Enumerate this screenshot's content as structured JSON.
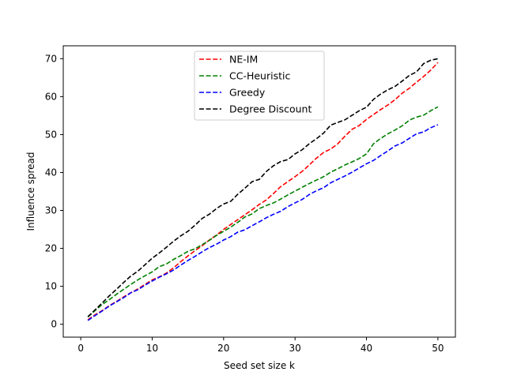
{
  "chart_data": {
    "type": "line",
    "title": "",
    "xlabel": "Seed set size k",
    "ylabel": "Influence spread",
    "xlim": [
      -2.45,
      52.45
    ],
    "ylim": [
      -3.4,
      73.4
    ],
    "xticks": [
      0,
      10,
      20,
      30,
      40,
      50
    ],
    "yticks": [
      0,
      10,
      20,
      30,
      40,
      50,
      60,
      70
    ],
    "grid": false,
    "legend_position": "upper center",
    "x": [
      1,
      2,
      3,
      4,
      5,
      6,
      7,
      8,
      9,
      10,
      11,
      12,
      13,
      14,
      15,
      16,
      17,
      18,
      19,
      20,
      21,
      22,
      23,
      24,
      25,
      26,
      27,
      28,
      29,
      30,
      31,
      32,
      33,
      34,
      35,
      36,
      37,
      38,
      39,
      40,
      41,
      42,
      43,
      44,
      45,
      46,
      47,
      48,
      49,
      50
    ],
    "series": [
      {
        "name": "NE-IM",
        "color": "#ff0000",
        "values": [
          1.2,
          2.5,
          3.6,
          4.9,
          6.0,
          7.2,
          8.3,
          9.3,
          10.5,
          11.7,
          12.5,
          13.5,
          14.9,
          16.5,
          18.0,
          19.4,
          20.7,
          22.2,
          23.5,
          25.0,
          26.3,
          27.6,
          28.9,
          30.2,
          31.6,
          32.8,
          34.5,
          36.3,
          37.6,
          38.9,
          40.3,
          42.0,
          43.8,
          45.3,
          46.2,
          47.6,
          49.6,
          51.4,
          52.4,
          54.0,
          55.3,
          56.6,
          57.8,
          59.2,
          60.9,
          62.2,
          63.8,
          65.3,
          67.0,
          69.0
        ]
      },
      {
        "name": "CC-Heuristic",
        "color": "#008000",
        "values": [
          1.9,
          3.6,
          5.2,
          6.5,
          7.9,
          9.2,
          10.5,
          11.7,
          12.8,
          13.8,
          15.2,
          15.9,
          17.1,
          18.1,
          19.2,
          19.9,
          21.0,
          22.1,
          23.4,
          24.5,
          25.6,
          26.9,
          28.3,
          29.1,
          30.5,
          31.3,
          32.0,
          33.0,
          34.1,
          35.1,
          36.1,
          37.1,
          38.0,
          38.9,
          40.1,
          41.0,
          42.0,
          42.8,
          43.7,
          44.9,
          47.6,
          49.0,
          50.2,
          51.2,
          52.3,
          53.8,
          54.6,
          55.1,
          56.3,
          57.3
        ]
      },
      {
        "name": "Greedy",
        "color": "#0000ff",
        "values": [
          1.0,
          2.3,
          3.5,
          4.8,
          5.9,
          7.0,
          8.3,
          9.1,
          10.3,
          11.4,
          12.4,
          13.3,
          14.3,
          15.6,
          16.8,
          17.9,
          19.1,
          20.2,
          21.1,
          22.2,
          23.1,
          24.3,
          24.9,
          26.0,
          27.0,
          28.1,
          29.0,
          29.8,
          31.0,
          32.0,
          32.9,
          34.2,
          35.2,
          36.0,
          37.3,
          38.2,
          39.1,
          40.1,
          41.2,
          42.3,
          43.2,
          44.5,
          45.7,
          47.0,
          47.8,
          49.0,
          50.2,
          50.7,
          51.8,
          52.6
        ]
      },
      {
        "name": "Degree Discount",
        "color": "#000000",
        "values": [
          2.0,
          3.8,
          5.6,
          7.5,
          9.2,
          11.0,
          12.7,
          14.0,
          15.7,
          17.4,
          18.8,
          20.3,
          21.9,
          23.3,
          24.5,
          26.1,
          27.9,
          29.0,
          30.5,
          31.7,
          32.4,
          34.3,
          35.9,
          37.6,
          38.2,
          40.3,
          41.8,
          42.9,
          43.4,
          44.9,
          46.0,
          47.6,
          48.9,
          50.4,
          52.5,
          53.2,
          53.9,
          55.1,
          56.3,
          57.2,
          59.3,
          60.7,
          61.8,
          62.7,
          64.1,
          65.6,
          66.5,
          68.7,
          69.6,
          70.0
        ]
      }
    ]
  }
}
